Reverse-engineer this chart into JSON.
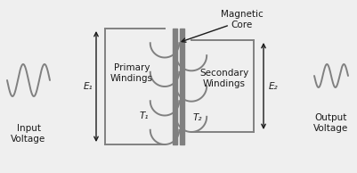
{
  "bg_color": "#efefef",
  "line_color": "#808080",
  "text_color": "#1a1a1a",
  "fig_width": 4.01,
  "fig_height": 1.94,
  "dpi": 100,
  "labels": {
    "input_voltage": "Input\nVoltage",
    "output_voltage": "Output\nVoltage",
    "primary_windings": "Primary\nWindings",
    "secondary_windings": "Secondary\nWindings",
    "e1": "E₁",
    "e2": "E₂",
    "t1": "T₁",
    "t2": "T₂",
    "magnetic_core": "Magnetic\nCore"
  }
}
